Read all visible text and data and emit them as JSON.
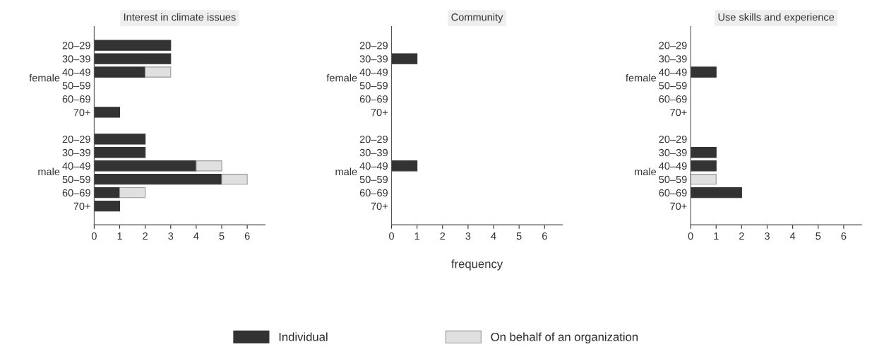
{
  "chart_data": [
    {
      "type": "bar",
      "orientation": "horizontal",
      "stacked": true,
      "title": "Interest in climate issues",
      "categories": [
        "20–29",
        "30–39",
        "40–49",
        "50–59",
        "60–69",
        "70+",
        null,
        "20–29",
        "30–39",
        "40–49",
        "50–59",
        "60–69",
        "70+"
      ],
      "series": [
        {
          "name": "Individual",
          "color": "#333333",
          "values": [
            3,
            3,
            2,
            null,
            null,
            1,
            null,
            2,
            2,
            4,
            5,
            1,
            1
          ]
        },
        {
          "name": "On behalf of an organization",
          "color": "#e0e0e0",
          "values": [
            null,
            null,
            1,
            null,
            null,
            null,
            null,
            null,
            null,
            1,
            1,
            1,
            null
          ]
        }
      ],
      "annotations": [
        "female",
        "male"
      ],
      "xlim": [
        0,
        6.7
      ],
      "xticks": [
        0,
        1,
        2,
        3,
        4,
        5,
        6
      ],
      "grid": false,
      "legend": "bottom"
    },
    {
      "type": "bar",
      "orientation": "horizontal",
      "stacked": true,
      "title": "Community",
      "xlabel": "frequency",
      "categories": [
        "20–29",
        "30–39",
        "40–49",
        "50–59",
        "60–69",
        "70+",
        null,
        "20–29",
        "30–39",
        "40–49",
        "50–59",
        "60–69",
        "70+"
      ],
      "series": [
        {
          "color": "#333333",
          "values": [
            null,
            1,
            null,
            null,
            null,
            null,
            null,
            null,
            null,
            1,
            null,
            null,
            null
          ]
        }
      ],
      "annotations": [
        "female",
        "male"
      ],
      "xlim": [
        0,
        6.7
      ],
      "xticks": [
        0,
        1,
        2,
        3,
        4,
        5,
        6
      ],
      "grid": false
    },
    {
      "type": "bar",
      "orientation": "horizontal",
      "stacked": true,
      "title": "Use skills and experience",
      "categories": [
        "20–29",
        "30–39",
        "40–49",
        "50–59",
        "60–69",
        "70+",
        null,
        "20–29",
        "30–39",
        "40–49",
        "50–59",
        "60–69",
        "70+"
      ],
      "series": [
        {
          "color": "#333333",
          "values": [
            null,
            null,
            1,
            null,
            null,
            null,
            null,
            null,
            1,
            1,
            null,
            2,
            null
          ]
        },
        {
          "color": "#e0e0e0",
          "values": [
            null,
            null,
            null,
            null,
            null,
            null,
            null,
            null,
            null,
            null,
            1,
            null,
            null
          ]
        }
      ],
      "annotations": [
        "female",
        "male"
      ],
      "xlim": [
        0,
        6.7
      ],
      "xticks": [
        0,
        1,
        2,
        3,
        4,
        5,
        6
      ],
      "grid": false
    }
  ]
}
